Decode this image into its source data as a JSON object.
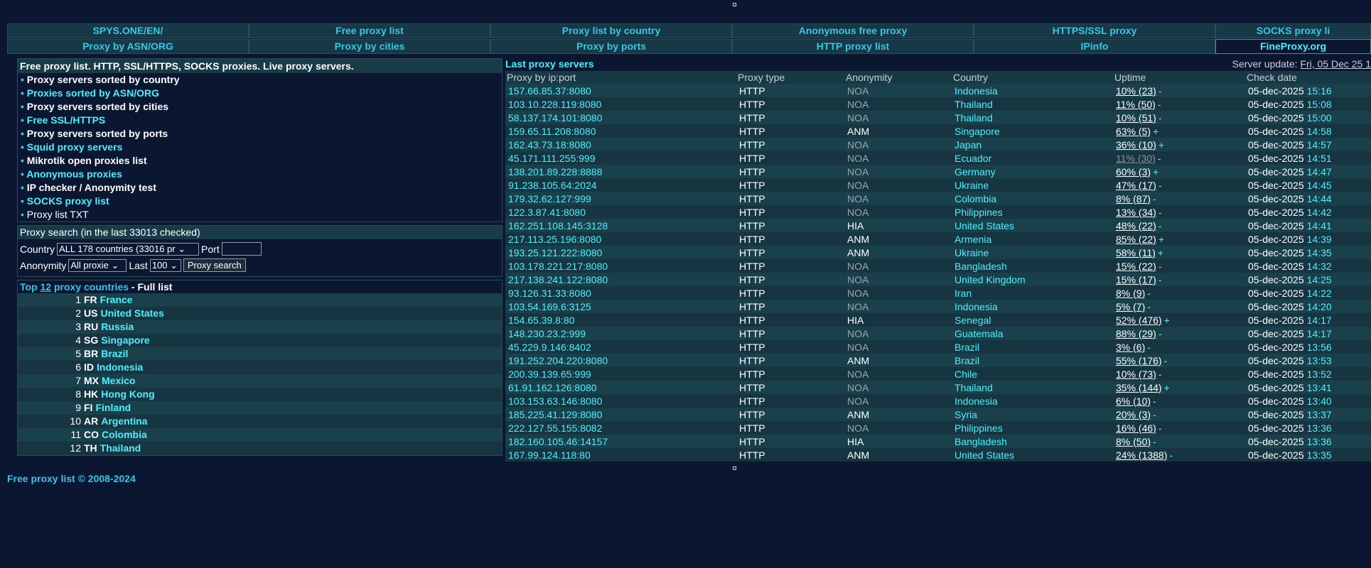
{
  "nav": {
    "row1": [
      "SPYS.ONE/EN/",
      "Free proxy list",
      "Proxy list by country",
      "Anonymous free proxy",
      "HTTPS/SSL proxy",
      "SOCKS proxy li"
    ],
    "row2": [
      "Proxy by ASN/ORG",
      "Proxy by cities",
      "Proxy by ports",
      "HTTP proxy list",
      "IPinfo",
      "FineProxy.org"
    ]
  },
  "left": {
    "header": "Free proxy list. HTTP, SSL/HTTPS, SOCKS proxies. Live proxy servers.",
    "menu": [
      {
        "label": "Proxy servers sorted by country",
        "style": "bold"
      },
      {
        "label": "Proxies sorted by ASN/ORG",
        "style": "link"
      },
      {
        "label": "Proxy servers sorted by cities",
        "style": "bold"
      },
      {
        "label": "Free SSL/HTTPS",
        "style": "link"
      },
      {
        "label": "Proxy servers sorted by ports",
        "style": "bold"
      },
      {
        "label": "Squid proxy servers",
        "style": "link"
      },
      {
        "label": "Mikrotik open proxies list",
        "style": "bold"
      },
      {
        "label": "Anonymous proxies",
        "style": "link"
      },
      {
        "label": "IP checker / Anonymity test",
        "style": "bold"
      },
      {
        "label": "SOCKS proxy list",
        "style": "link"
      },
      {
        "label": "Proxy list TXT",
        "style": "plain"
      }
    ],
    "bullet": "•",
    "search": {
      "title": "Proxy search (in the last 33013 checked)",
      "country_label": "Country",
      "country_value": "ALL 178 countries (33016 pr",
      "port_label": "Port",
      "anonymity_label": "Anonymity",
      "anonymity_value": "All proxie",
      "last_label": "Last",
      "last_value": "100",
      "button": "Proxy search"
    },
    "top": {
      "prefix": "Top",
      "count": "12",
      "middle": "proxy countries",
      "sep": " - ",
      "full": "Full list",
      "countries": [
        {
          "n": "1",
          "code": "FR",
          "name": "France"
        },
        {
          "n": "2",
          "code": "US",
          "name": "United States"
        },
        {
          "n": "3",
          "code": "RU",
          "name": "Russia"
        },
        {
          "n": "4",
          "code": "SG",
          "name": "Singapore"
        },
        {
          "n": "5",
          "code": "BR",
          "name": "Brazil"
        },
        {
          "n": "6",
          "code": "ID",
          "name": "Indonesia"
        },
        {
          "n": "7",
          "code": "MX",
          "name": "Mexico"
        },
        {
          "n": "8",
          "code": "HK",
          "name": "Hong Kong"
        },
        {
          "n": "9",
          "code": "FI",
          "name": "Finland"
        },
        {
          "n": "10",
          "code": "AR",
          "name": "Argentina"
        },
        {
          "n": "11",
          "code": "CO",
          "name": "Colombia"
        },
        {
          "n": "12",
          "code": "TH",
          "name": "Thailand"
        }
      ]
    }
  },
  "right": {
    "title": "Last proxy servers",
    "update_label": "Server update:",
    "update_value": "Fri, 05 Dec 25 1",
    "columns": [
      "Proxy by ip:port",
      "Proxy type",
      "Anonymity",
      "Country",
      "Uptime",
      "Check date"
    ],
    "rows": [
      [
        "157.66.85.37:8080",
        "HTTP",
        "NOA",
        "Indonesia",
        "10% (23)",
        "-",
        "05-dec-2025",
        "15:16"
      ],
      [
        "103.10.228.119:8080",
        "HTTP",
        "NOA",
        "Thailand",
        "11% (50)",
        "-",
        "05-dec-2025",
        "15:08"
      ],
      [
        "58.137.174.101:8080",
        "HTTP",
        "NOA",
        "Thailand",
        "10% (51)",
        "-",
        "05-dec-2025",
        "15:00"
      ],
      [
        "159.65.11.208:8080",
        "HTTP",
        "ANM",
        "Singapore",
        "63% (5)",
        "+",
        "05-dec-2025",
        "14:58"
      ],
      [
        "162.43.73.18:8080",
        "HTTP",
        "NOA",
        "Japan",
        "36% (10)",
        "+",
        "05-dec-2025",
        "14:57"
      ],
      [
        "45.171.111.255:999",
        "HTTP",
        "NOA",
        "Ecuador",
        "11% (30)",
        "-",
        "05-dec-2025",
        "14:51"
      ],
      [
        "138.201.89.228:8888",
        "HTTP",
        "NOA",
        "Germany",
        "60% (3)",
        "+",
        "05-dec-2025",
        "14:47"
      ],
      [
        "91.238.105.64:2024",
        "HTTP",
        "NOA",
        "Ukraine",
        "47% (17)",
        "-",
        "05-dec-2025",
        "14:45"
      ],
      [
        "179.32.62.127:999",
        "HTTP",
        "NOA",
        "Colombia",
        "8% (87)",
        "-",
        "05-dec-2025",
        "14:44"
      ],
      [
        "122.3.87.41:8080",
        "HTTP",
        "NOA",
        "Philippines",
        "13% (34)",
        "-",
        "05-dec-2025",
        "14:42"
      ],
      [
        "162.251.108.145:3128",
        "HTTP",
        "HIA",
        "United States",
        "48% (22)",
        "-",
        "05-dec-2025",
        "14:41"
      ],
      [
        "217.113.25.196:8080",
        "HTTP",
        "ANM",
        "Armenia",
        "85% (22)",
        "+",
        "05-dec-2025",
        "14:39"
      ],
      [
        "193.25.121.222:8080",
        "HTTP",
        "ANM",
        "Ukraine",
        "58% (11)",
        "+",
        "05-dec-2025",
        "14:35"
      ],
      [
        "103.178.221.217:8080",
        "HTTP",
        "NOA",
        "Bangladesh",
        "15% (22)",
        "-",
        "05-dec-2025",
        "14:32"
      ],
      [
        "217.138.241.122:8080",
        "HTTP",
        "NOA",
        "United Kingdom",
        "15% (17)",
        "-",
        "05-dec-2025",
        "14:25"
      ],
      [
        "93.126.31.33:8080",
        "HTTP",
        "NOA",
        "Iran",
        "8% (9)",
        "-",
        "05-dec-2025",
        "14:22"
      ],
      [
        "103.54.169.6:3125",
        "HTTP",
        "NOA",
        "Indonesia",
        "5% (7)",
        "-",
        "05-dec-2025",
        "14:20"
      ],
      [
        "154.65.39.8:80",
        "HTTP",
        "HIA",
        "Senegal",
        "52% (476)",
        "+",
        "05-dec-2025",
        "14:17"
      ],
      [
        "148.230.23.2:999",
        "HTTP",
        "NOA",
        "Guatemala",
        "88% (29)",
        "-",
        "05-dec-2025",
        "14:17"
      ],
      [
        "45.229.9.146:8402",
        "HTTP",
        "NOA",
        "Brazil",
        "3% (6)",
        "-",
        "05-dec-2025",
        "13:56"
      ],
      [
        "191.252.204.220:8080",
        "HTTP",
        "ANM",
        "Brazil",
        "55% (176)",
        "-",
        "05-dec-2025",
        "13:53"
      ],
      [
        "200.39.139.65:999",
        "HTTP",
        "NOA",
        "Chile",
        "10% (73)",
        "-",
        "05-dec-2025",
        "13:52"
      ],
      [
        "61.91.162.126:8080",
        "HTTP",
        "NOA",
        "Thailand",
        "35% (144)",
        "+",
        "05-dec-2025",
        "13:41"
      ],
      [
        "103.153.63.146:8080",
        "HTTP",
        "NOA",
        "Indonesia",
        "6% (10)",
        "-",
        "05-dec-2025",
        "13:40"
      ],
      [
        "185.225.41.129:8080",
        "HTTP",
        "ANM",
        "Syria",
        "20% (3)",
        "-",
        "05-dec-2025",
        "13:37"
      ],
      [
        "222.127.55.155:8082",
        "HTTP",
        "NOA",
        "Philippines",
        "16% (46)",
        "-",
        "05-dec-2025",
        "13:36"
      ],
      [
        "182.160.105.46:14157",
        "HTTP",
        "HIA",
        "Bangladesh",
        "8% (50)",
        "-",
        "05-dec-2025",
        "13:36"
      ],
      [
        "167.99.124.118:80",
        "HTTP",
        "ANM",
        "United States",
        "24% (1388)",
        "-",
        "05-dec-2025",
        "13:35"
      ]
    ]
  },
  "footer": "Free proxy list © 2008-2024",
  "colors": {
    "background": "#0b1730",
    "accent": "#34c8e8",
    "link": "#4ff0ff",
    "row": "#19404b"
  }
}
